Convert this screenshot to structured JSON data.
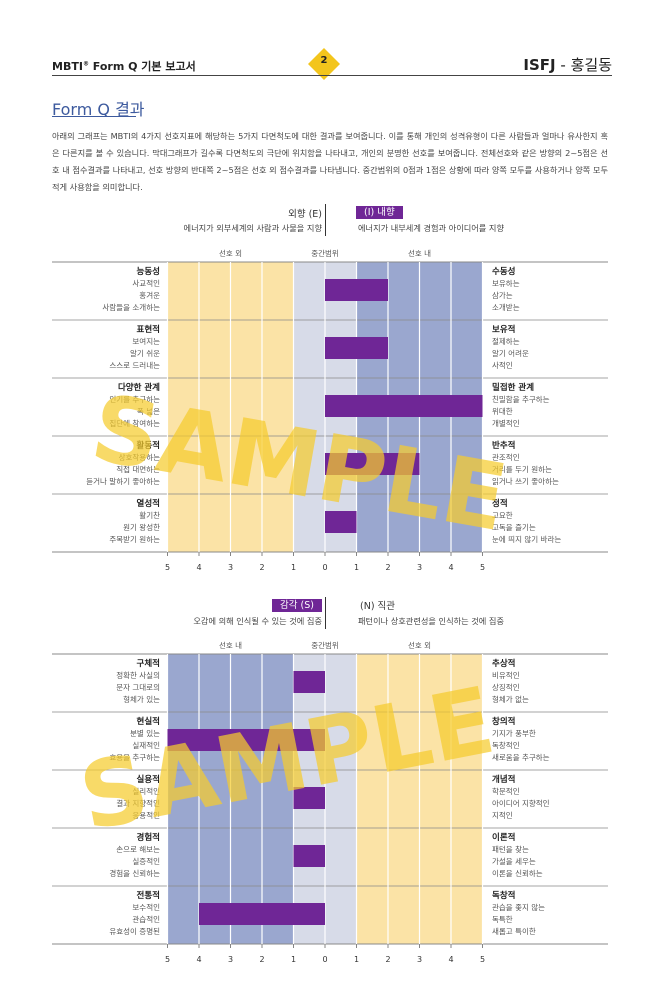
{
  "header": {
    "report_prefix": "MBTI",
    "report_reg": "®",
    "report_title": " Form Q 기본 보고서",
    "page_number": "2",
    "type_code": "ISFJ",
    "type_sep": " - ",
    "person_name": "홍길동"
  },
  "section": {
    "title": "Form Q 결과",
    "intro": "아래의 그래프는 MBTI의 4가지 선호지표에 해당하는 5가지 다면척도에 대한 결과를 보여줍니다. 이를 통해 개인의 성격유형이 다른 사람들과 얼마나 유사한지 혹은 다른지를 볼 수 있습니다. 막대그래프가 길수록 다면척도의 극단에 위치함을 나타내고, 개인의 분명한 선호를 보여줍니다. 전체선호와 같은 방향의 2~5점은 선호 내 점수결과를 나타내고, 선호 방향의 반대쪽 2~5점은 선호 외 점수결과를 나타냅니다. 중간범위의 0점과 1점은 상황에 따라 양쪽 모두를 사용하거나 양쪽 모두 적게 사용함을 의미합니다."
  },
  "watermark": "SAMPLE",
  "colors": {
    "bar": "#6f2696",
    "in_pref": "#9aa7cf",
    "out_pref": "#fbe3a6",
    "mid": "#d7dbe8",
    "grid": "#999999",
    "watermark": "#f5cc2e"
  },
  "charts": [
    {
      "left_pole": {
        "name": "외향 (E)",
        "desc": "에너지가 외부세계의 사람과 사물을 지향"
      },
      "right_pole": {
        "name": "(I) 내향",
        "desc": "에너지가 내부세계 경험과 아이디어를 지향"
      },
      "highlight": "right",
      "zones": {
        "left": "선호 외",
        "mid": "중간범위",
        "right": "선호 내"
      },
      "left_color": "out_pref",
      "right_color": "in_pref",
      "ticks": [
        "5",
        "4",
        "3",
        "2",
        "1",
        "0",
        "1",
        "2",
        "3",
        "4",
        "5"
      ],
      "rows": [
        {
          "left_title": "능동성",
          "left_lines": [
            "사교적인",
            "홍겨운",
            "사람들을 소개하는"
          ],
          "right_title": "수동성",
          "right_lines": [
            "보유하는",
            "삼가는",
            "소개받는"
          ],
          "score": 2
        },
        {
          "left_title": "표현적",
          "left_lines": [
            "보여지는",
            "알기 쉬운",
            "스스로 드러내는"
          ],
          "right_title": "보유적",
          "right_lines": [
            "절제하는",
            "알기 어려운",
            "사적인"
          ],
          "score": 2
        },
        {
          "left_title": "다양한 관계",
          "left_lines": [
            "인기를 추구하는",
            "폭 넓은",
            "집단에 참여하는"
          ],
          "right_title": "밀접한 관계",
          "right_lines": [
            "친밀함을 추구하는",
            "위대한",
            "개별적인"
          ],
          "score": 5
        },
        {
          "left_title": "활동적",
          "left_lines": [
            "상호작용하는",
            "직접 대면하는",
            "듣거나 말하기 좋아하는"
          ],
          "right_title": "반추적",
          "right_lines": [
            "관조적인",
            "거리를 두기 원하는",
            "읽거나 쓰기 좋아하는"
          ],
          "score": 3
        },
        {
          "left_title": "열성적",
          "left_lines": [
            "활기찬",
            "원기 왕성한",
            "주목받기 원하는"
          ],
          "right_title": "정적",
          "right_lines": [
            "고요한",
            "고독을 즐기는",
            "눈에 띄지 않기 바라는"
          ],
          "score": 1
        }
      ]
    },
    {
      "left_pole": {
        "name": "감각 (S)",
        "desc": "오감에 의해 인식될 수 있는 것에 집중"
      },
      "right_pole": {
        "name": "(N) 직관",
        "desc": "패턴이나 상호관련성을 인식하는 것에 집중"
      },
      "highlight": "left",
      "zones": {
        "left": "선호 내",
        "mid": "중간범위",
        "right": "선호 외"
      },
      "left_color": "in_pref",
      "right_color": "out_pref",
      "ticks": [
        "5",
        "4",
        "3",
        "2",
        "1",
        "0",
        "1",
        "2",
        "3",
        "4",
        "5"
      ],
      "rows": [
        {
          "left_title": "구체적",
          "left_lines": [
            "정확한 사실의",
            "문자 그대로의",
            "형체가 있는"
          ],
          "right_title": "추상적",
          "right_lines": [
            "비유적인",
            "상징적인",
            "형체가 없는"
          ],
          "score": -1
        },
        {
          "left_title": "현실적",
          "left_lines": [
            "분별 있는",
            "실재적인",
            "효용을 추구하는"
          ],
          "right_title": "창의적",
          "right_lines": [
            "기지가 풍부한",
            "독창적인",
            "새로움을 추구하는"
          ],
          "score": -5
        },
        {
          "left_title": "실용적",
          "left_lines": [
            "실리적인",
            "결과 지향적인",
            "응용적인"
          ],
          "right_title": "개념적",
          "right_lines": [
            "학문적인",
            "아이디어 지향적인",
            "지적인"
          ],
          "score": -1
        },
        {
          "left_title": "경험적",
          "left_lines": [
            "손으로 해보는",
            "실증적인",
            "경험을 신뢰하는"
          ],
          "right_title": "이론적",
          "right_lines": [
            "패턴을 찾는",
            "가설을 세우는",
            "이론을 신뢰하는"
          ],
          "score": -1
        },
        {
          "left_title": "전통적",
          "left_lines": [
            "보수적인",
            "관습적인",
            "유효성이 증명된"
          ],
          "right_title": "독창적",
          "right_lines": [
            "관습을 좇지 않는",
            "독특한",
            "새롭고 특이한"
          ],
          "score": -4
        }
      ]
    }
  ]
}
